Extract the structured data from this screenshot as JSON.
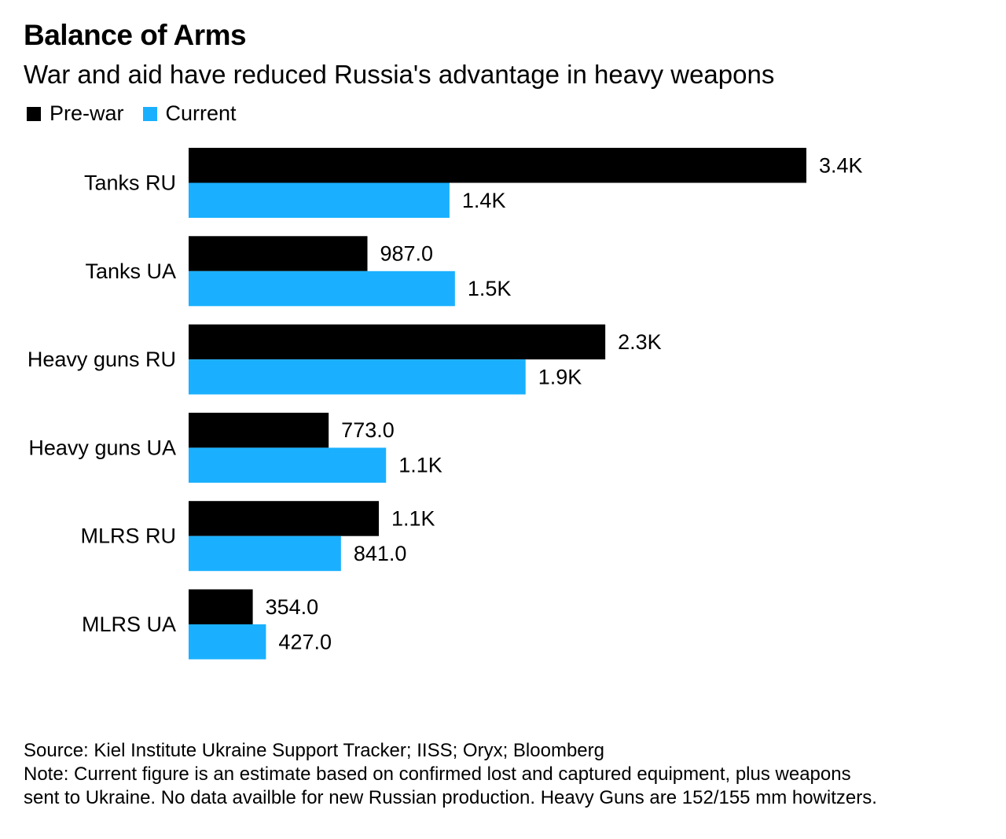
{
  "header": {
    "title": "Balance of Arms",
    "subtitle": "War and aid have reduced Russia's advantage in heavy weapons"
  },
  "chart_data": {
    "type": "bar",
    "orientation": "horizontal",
    "title": "Balance of Arms",
    "subtitle": "War and aid have reduced Russia's advantage in heavy weapons",
    "categories": [
      "Tanks RU",
      "Tanks UA",
      "Heavy guns RU",
      "Heavy guns UA",
      "MLRS RU",
      "MLRS UA"
    ],
    "series": [
      {
        "name": "Pre-war",
        "color": "#000000",
        "values": [
          3410,
          987,
          2300,
          773,
          1050,
          354
        ],
        "labels": [
          "3.4K",
          "987.0",
          "2.3K",
          "773.0",
          "1.1K",
          "354.0"
        ]
      },
      {
        "name": "Current",
        "color": "#1ab0ff",
        "values": [
          1440,
          1470,
          1860,
          1090,
          841,
          427
        ],
        "labels": [
          "1.4K",
          "1.5K",
          "1.9K",
          "1.1K",
          "841.0",
          "427.0"
        ]
      }
    ],
    "legend_position": "top-left",
    "grid": false,
    "xlim": [
      0,
      4500
    ]
  },
  "footer": {
    "source": "Source: Kiel Institute Ukraine Support Tracker; IISS; Oryx; Bloomberg",
    "note_line1": "Note: Current figure is an estimate based on confirmed lost and captured equipment, plus weapons",
    "note_line2": "sent to Ukraine. No data availble for new Russian production. Heavy Guns are 152/155 mm howitzers."
  }
}
